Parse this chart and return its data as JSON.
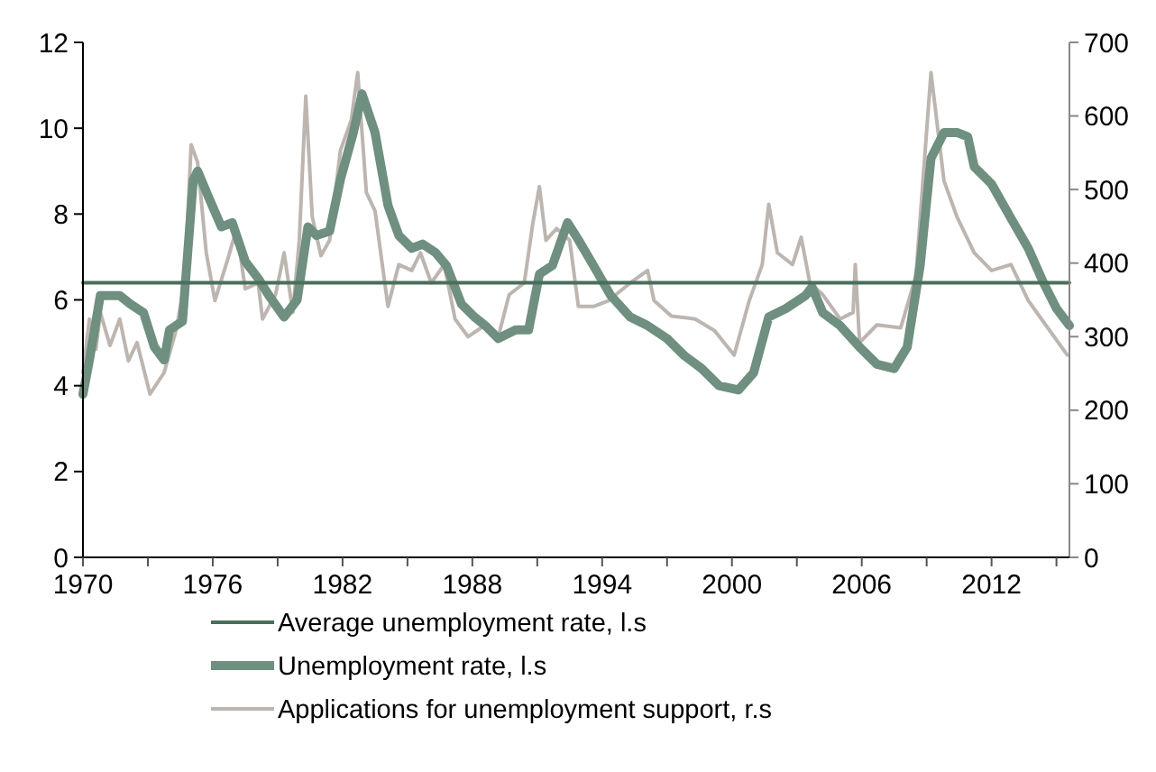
{
  "chart_data": {
    "type": "line",
    "xlim": [
      1970,
      2015.6
    ],
    "xticks": [
      1970,
      {
        "value": 1973,
        "label": null
      },
      1976,
      {
        "value": 1979,
        "label": null
      },
      1982,
      {
        "value": 1985,
        "label": null
      },
      1988,
      {
        "value": 1991,
        "label": null
      },
      1994,
      {
        "value": 1997,
        "label": null
      },
      2000,
      {
        "value": 2003,
        "label": null
      },
      2006,
      {
        "value": 2009,
        "label": null
      },
      2012,
      {
        "value": 2015,
        "label": null
      }
    ],
    "ylim": [
      0,
      12
    ],
    "yticks": [
      0,
      2,
      4,
      6,
      8,
      10,
      12
    ],
    "y2lim": [
      0,
      700
    ],
    "y2ticks": [
      0,
      100,
      200,
      300,
      400,
      500,
      600,
      700
    ],
    "grid": false,
    "legend": "bottom",
    "marker": "none",
    "series": [
      {
        "name": "Applications for unemployment support, r.s",
        "color": "#bdb6b0",
        "axis": "y2",
        "x": [
          1970.0,
          1970.3,
          1970.6,
          1970.8,
          1971.25,
          1971.7,
          1972.1,
          1972.5,
          1973.1,
          1973.75,
          1974.3,
          1974.7,
          1975.0,
          1975.3,
          1975.7,
          1976.1,
          1976.7,
          1977.1,
          1977.5,
          1978.1,
          1978.3,
          1978.9,
          1979.3,
          1979.7,
          1980.0,
          1980.3,
          1980.6,
          1981.0,
          1981.4,
          1981.9,
          1982.4,
          1982.7,
          1983.1,
          1983.5,
          1984.1,
          1984.6,
          1985.2,
          1985.6,
          1986.1,
          1986.7,
          1987.2,
          1987.8,
          1988.6,
          1989.2,
          1989.7,
          1990.4,
          1990.8,
          1991.1,
          1991.4,
          1991.9,
          1992.5,
          1992.9,
          1993.6,
          1994.3,
          1995.3,
          1996.1,
          1996.4,
          1997.2,
          1998.3,
          1999.2,
          2000.1,
          2000.8,
          2001.4,
          2001.7,
          2002.1,
          2002.8,
          2003.2,
          2003.6,
          2004.2,
          2005.0,
          2005.6,
          2005.7,
          2005.9,
          2006.7,
          2007.8,
          2008.5,
          2009.2,
          2009.8,
          2010.4,
          2011.2,
          2012.0,
          2012.9,
          2013.7,
          2014.5,
          2015.5
        ],
        "values": [
          251,
          324,
          283,
          333,
          288,
          324,
          267,
          292,
          222,
          251,
          308,
          373,
          561,
          537,
          414,
          349,
          406,
          447,
          365,
          373,
          324,
          357,
          414,
          333,
          431,
          627,
          463,
          410,
          431,
          553,
          594,
          659,
          496,
          471,
          341,
          398,
          390,
          414,
          373,
          398,
          324,
          300,
          316,
          300,
          357,
          373,
          455,
          504,
          431,
          447,
          431,
          341,
          341,
          349,
          373,
          390,
          349,
          328,
          324,
          308,
          275,
          349,
          398,
          480,
          414,
          398,
          435,
          373,
          357,
          324,
          333,
          398,
          292,
          316,
          312,
          382,
          659,
          512,
          463,
          414,
          390,
          398,
          349,
          316,
          275
        ]
      },
      {
        "name": "Unemployment rate, l.s",
        "color": "#6f8f80",
        "x": [
          1970.0,
          1970.3,
          1970.8,
          1971.7,
          1972.2,
          1972.8,
          1973.3,
          1973.75,
          1974.0,
          1974.6,
          1975.1,
          1975.3,
          1975.8,
          1976.4,
          1976.9,
          1977.5,
          1978.1,
          1978.6,
          1979.3,
          1979.9,
          1980.4,
          1980.8,
          1981.4,
          1981.9,
          1982.5,
          1982.9,
          1983.5,
          1984.1,
          1984.6,
          1985.2,
          1985.7,
          1986.3,
          1986.8,
          1987.5,
          1988.1,
          1988.6,
          1989.2,
          1990.0,
          1990.6,
          1991.1,
          1991.7,
          1992.4,
          1992.9,
          1993.6,
          1994.4,
          1995.3,
          1996.1,
          1997.0,
          1997.8,
          1998.6,
          1999.4,
          2000.3,
          2001.0,
          2001.7,
          2002.5,
          2003.4,
          2003.7,
          2004.2,
          2005.0,
          2005.9,
          2006.7,
          2007.5,
          2008.1,
          2008.7,
          2009.2,
          2009.8,
          2010.4,
          2010.9,
          2011.2,
          2012.0,
          2012.9,
          2013.7,
          2014.4,
          2015.0,
          2015.6
        ],
        "values": [
          3.8,
          4.6,
          6.1,
          6.1,
          5.9,
          5.7,
          4.9,
          4.6,
          5.3,
          5.5,
          8.8,
          9.0,
          8.4,
          7.7,
          7.8,
          6.9,
          6.5,
          6.1,
          5.6,
          6.0,
          7.7,
          7.5,
          7.6,
          8.8,
          9.9,
          10.8,
          9.9,
          8.2,
          7.5,
          7.2,
          7.3,
          7.1,
          6.8,
          5.9,
          5.6,
          5.4,
          5.1,
          5.3,
          5.3,
          6.6,
          6.8,
          7.8,
          7.4,
          6.8,
          6.1,
          5.6,
          5.4,
          5.1,
          4.7,
          4.4,
          4.0,
          3.9,
          4.3,
          5.6,
          5.8,
          6.1,
          6.3,
          5.7,
          5.4,
          4.9,
          4.5,
          4.4,
          4.9,
          6.8,
          9.3,
          9.9,
          9.9,
          9.8,
          9.1,
          8.7,
          7.9,
          7.2,
          6.4,
          5.8,
          5.4
        ]
      },
      {
        "name": "Average unemployment rate, l.s",
        "color": "#4a6e5c",
        "x": [
          1970,
          2015.6
        ],
        "values": [
          6.4,
          6.4
        ]
      }
    ]
  }
}
